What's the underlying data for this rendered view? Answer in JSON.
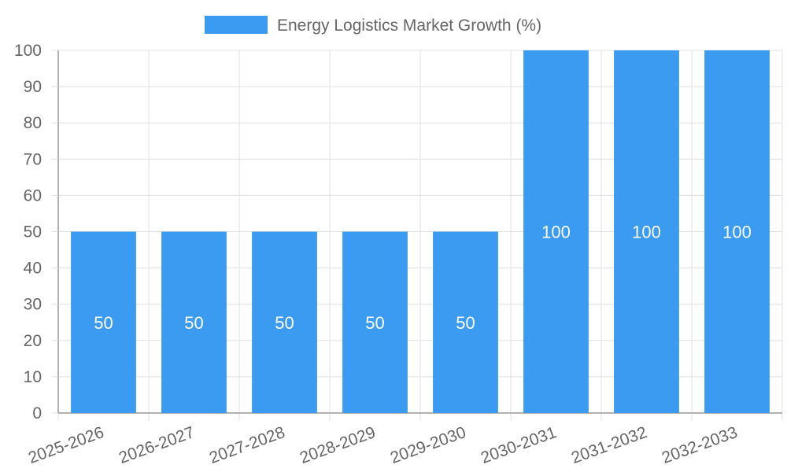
{
  "chart_data": {
    "type": "bar",
    "categories": [
      "2025-2026",
      "2026-2027",
      "2027-2028",
      "2028-2029",
      "2029-2030",
      "2030-2031",
      "2031-2032",
      "2032-2033"
    ],
    "series": [
      {
        "name": "Energy Logistics Market Growth (%)",
        "values": [
          50,
          50,
          50,
          50,
          50,
          100,
          100,
          100
        ]
      }
    ],
    "ylim": [
      0,
      100
    ],
    "ytick_step": 10,
    "grid": true,
    "legend_position": "top",
    "data_labels": true,
    "colors": {
      "bar": "#3a9bf0",
      "grid": "#e0e0e0",
      "axis": "#999999",
      "text": "#666666"
    }
  }
}
